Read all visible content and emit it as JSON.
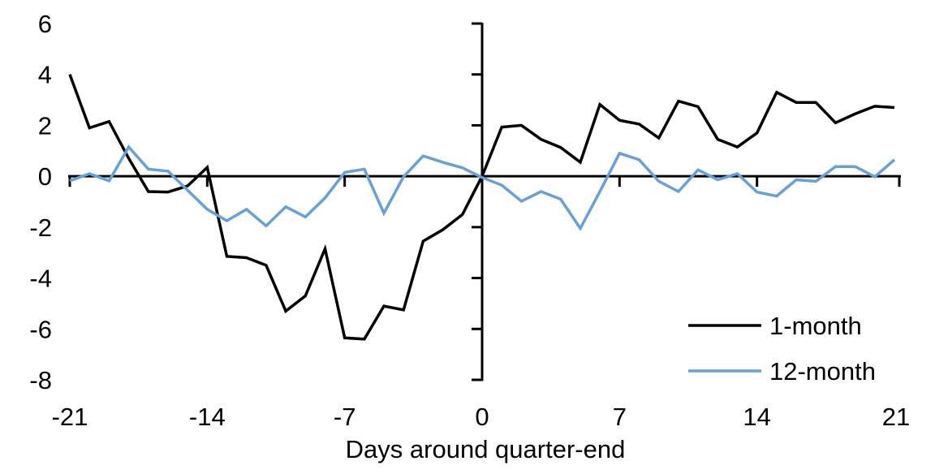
{
  "figure": {
    "background": "#ffffff",
    "axis_color": "#000000",
    "text_color": "#000000"
  },
  "chart_data": {
    "type": "line",
    "title": "",
    "xlabel": "Days around quarter-end",
    "ylabel": "",
    "xlim": [
      -21,
      21
    ],
    "ylim": [
      -8,
      6
    ],
    "grid": false,
    "legend_position": "lower-right",
    "x_ticks": [
      -21,
      -14,
      -7,
      0,
      7,
      14,
      21
    ],
    "y_ticks": [
      6,
      4,
      2,
      0,
      -2,
      -4,
      -6,
      -8
    ],
    "x": [
      -21,
      -20,
      -19,
      -18,
      -17,
      -16,
      -15,
      -14,
      -13,
      -12,
      -11,
      -10,
      -9,
      -8,
      -7,
      -6,
      -5,
      -4,
      -3,
      -2,
      -1,
      0,
      1,
      2,
      3,
      4,
      5,
      6,
      7,
      8,
      9,
      10,
      11,
      12,
      13,
      14,
      15,
      16,
      17,
      18,
      19,
      20,
      21
    ],
    "series": [
      {
        "name": "1-month",
        "color": "#000000",
        "values": [
          4.0,
          1.9,
          2.15,
          0.7,
          -0.6,
          -0.62,
          -0.38,
          0.35,
          -3.15,
          -3.2,
          -3.5,
          -5.3,
          -4.7,
          -2.85,
          -6.35,
          -6.4,
          -5.1,
          -5.25,
          -2.55,
          -2.1,
          -1.5,
          0.0,
          1.93,
          2.0,
          1.45,
          1.13,
          0.55,
          2.82,
          2.2,
          2.05,
          1.5,
          2.95,
          2.73,
          1.45,
          1.15,
          1.7,
          3.3,
          2.9,
          2.9,
          2.1,
          2.45,
          2.75,
          2.7
        ]
      },
      {
        "name": "12-month",
        "color": "#68A0D8",
        "values": [
          -0.18,
          0.1,
          -0.18,
          1.15,
          0.28,
          0.2,
          -0.55,
          -1.3,
          -1.75,
          -1.3,
          -1.95,
          -1.2,
          -1.6,
          -0.85,
          0.15,
          0.28,
          -1.45,
          -0.02,
          0.8,
          0.55,
          0.33,
          -0.05,
          -0.35,
          -0.98,
          -0.6,
          -0.9,
          -2.05,
          -0.6,
          0.9,
          0.65,
          -0.2,
          -0.6,
          0.25,
          -0.14,
          0.1,
          -0.62,
          -0.78,
          -0.14,
          -0.2,
          0.38,
          0.38,
          -0.02,
          0.65
        ]
      }
    ]
  }
}
